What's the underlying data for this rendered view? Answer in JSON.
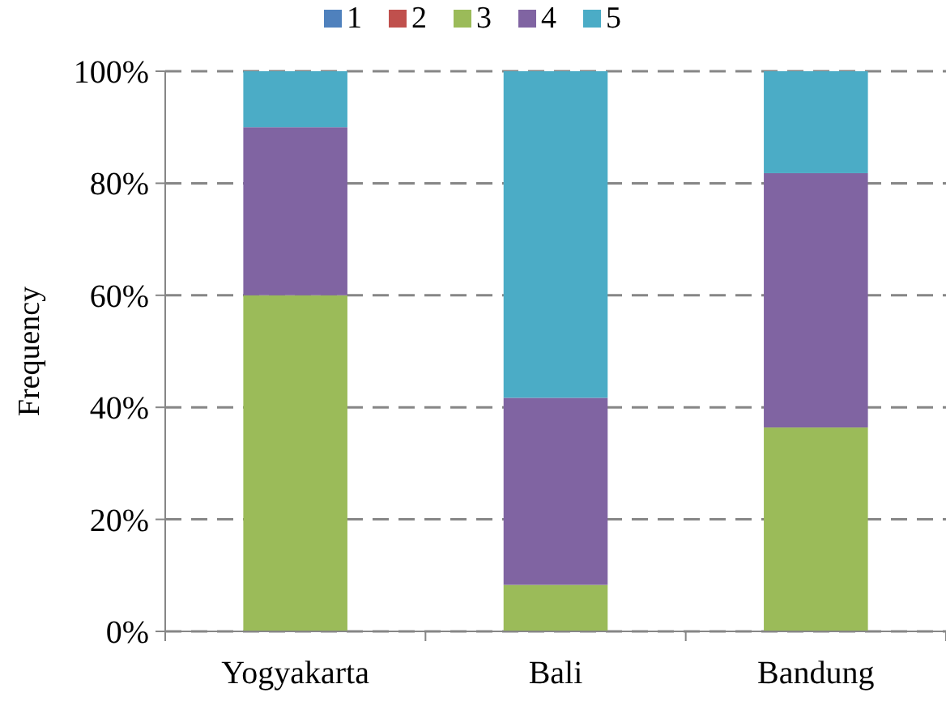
{
  "chart_data": {
    "type": "bar",
    "stacked": true,
    "ylabel": "Frequency",
    "categories": [
      "Yogyakarta",
      "Bali",
      "Bandung"
    ],
    "series": [
      {
        "name": "1",
        "color": "#4f81bd",
        "values": [
          0,
          0,
          0
        ]
      },
      {
        "name": "2",
        "color": "#c0504d",
        "values": [
          0,
          0,
          0
        ]
      },
      {
        "name": "3",
        "color": "#9bbb59",
        "values": [
          60,
          8.3,
          36.4
        ]
      },
      {
        "name": "4",
        "color": "#8064a2",
        "values": [
          30,
          33.4,
          45.4
        ]
      },
      {
        "name": "5",
        "color": "#4bacc6",
        "values": [
          10,
          58.3,
          18.2
        ]
      }
    ],
    "ylim": [
      0,
      100
    ],
    "yticks": [
      {
        "value": 0,
        "label": "0%"
      },
      {
        "value": 20,
        "label": "20%"
      },
      {
        "value": 40,
        "label": "40%"
      },
      {
        "value": 60,
        "label": "60%"
      },
      {
        "value": 80,
        "label": "80%"
      },
      {
        "value": 100,
        "label": "100%"
      }
    ],
    "grid": "y",
    "legend": "top"
  }
}
